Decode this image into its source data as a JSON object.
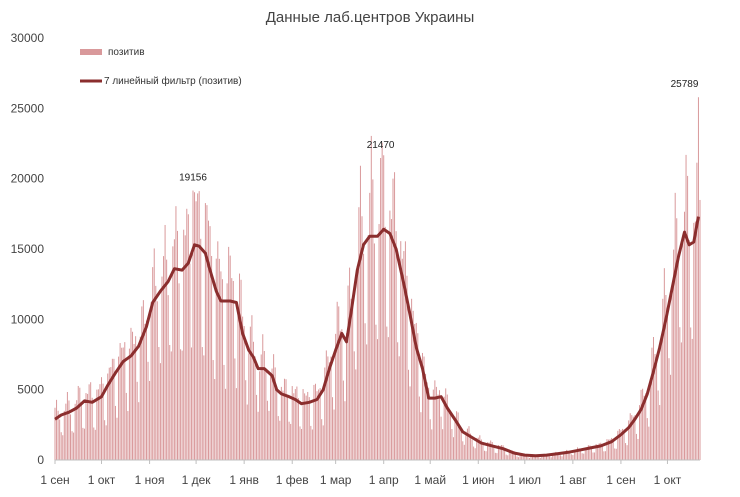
{
  "chart_data": {
    "type": "bar",
    "title": "Данные лаб.центров Украины",
    "ylim": [
      0,
      30000
    ],
    "y_ticks": [
      "0",
      "5000",
      "10000",
      "15000",
      "20000",
      "25000",
      "30000"
    ],
    "x_start": "2020-09-01",
    "x_end": "2021-10-22",
    "x_tick_dates": [
      "2020-09-01",
      "2020-10-01",
      "2020-11-01",
      "2020-12-01",
      "2021-01-01",
      "2021-02-01",
      "2021-03-01",
      "2021-04-01",
      "2021-05-01",
      "2021-06-01",
      "2021-07-01",
      "2021-08-01",
      "2021-09-01",
      "2021-10-01"
    ],
    "x_tick_labels": [
      "1 сен",
      "1 окт",
      "1 ноя",
      "1 дек",
      "1 янв",
      "1 фев",
      "1 мар",
      "1 апр",
      "1 май",
      "1 июн",
      "1 июл",
      "1 авг",
      "1 сен",
      "1 окт"
    ],
    "grid": false,
    "legend_position": "top-left",
    "series": [
      {
        "name": "позитив",
        "kind": "bar",
        "color": "#d9999b"
      },
      {
        "name": "7 линейный фильтр (позитив)",
        "kind": "line",
        "color": "#8b2e2e",
        "points": [
          [
            "2020-09-01",
            2900
          ],
          [
            "2020-09-05",
            3200
          ],
          [
            "2020-09-10",
            3400
          ],
          [
            "2020-09-15",
            3700
          ],
          [
            "2020-09-20",
            4200
          ],
          [
            "2020-09-25",
            4100
          ],
          [
            "2020-10-01",
            4500
          ],
          [
            "2020-10-05",
            5300
          ],
          [
            "2020-10-10",
            6200
          ],
          [
            "2020-10-15",
            7000
          ],
          [
            "2020-10-20",
            7400
          ],
          [
            "2020-10-25",
            8100
          ],
          [
            "2020-10-30",
            9500
          ],
          [
            "2020-11-03",
            11200
          ],
          [
            "2020-11-08",
            12000
          ],
          [
            "2020-11-13",
            12700
          ],
          [
            "2020-11-17",
            13600
          ],
          [
            "2020-11-22",
            13500
          ],
          [
            "2020-11-26",
            14000
          ],
          [
            "2020-11-30",
            15300
          ],
          [
            "2020-12-03",
            15200
          ],
          [
            "2020-12-07",
            14700
          ],
          [
            "2020-12-10",
            13500
          ],
          [
            "2020-12-14",
            12000
          ],
          [
            "2020-12-17",
            11300
          ],
          [
            "2020-12-23",
            11300
          ],
          [
            "2020-12-27",
            11200
          ],
          [
            "2020-12-31",
            9000
          ],
          [
            "2021-01-04",
            7800
          ],
          [
            "2021-01-07",
            7300
          ],
          [
            "2021-01-10",
            6500
          ],
          [
            "2021-01-14",
            6500
          ],
          [
            "2021-01-19",
            6000
          ],
          [
            "2021-01-22",
            5000
          ],
          [
            "2021-01-25",
            4700
          ],
          [
            "2021-01-30",
            4500
          ],
          [
            "2021-02-03",
            4300
          ],
          [
            "2021-02-07",
            4000
          ],
          [
            "2021-02-12",
            4100
          ],
          [
            "2021-02-17",
            4300
          ],
          [
            "2021-02-21",
            5000
          ],
          [
            "2021-02-25",
            6500
          ],
          [
            "2021-03-01",
            7800
          ],
          [
            "2021-03-05",
            9000
          ],
          [
            "2021-03-08",
            8400
          ],
          [
            "2021-03-11",
            10500
          ],
          [
            "2021-03-15",
            13500
          ],
          [
            "2021-03-19",
            15300
          ],
          [
            "2021-03-23",
            15900
          ],
          [
            "2021-03-28",
            15900
          ],
          [
            "2021-04-01",
            16400
          ],
          [
            "2021-04-05",
            16100
          ],
          [
            "2021-04-09",
            15000
          ],
          [
            "2021-04-14",
            12500
          ],
          [
            "2021-04-18",
            10300
          ],
          [
            "2021-04-22",
            8000
          ],
          [
            "2021-04-26",
            6500
          ],
          [
            "2021-04-30",
            4400
          ],
          [
            "2021-05-04",
            4400
          ],
          [
            "2021-05-08",
            4500
          ],
          [
            "2021-05-12",
            3700
          ],
          [
            "2021-05-18",
            2700
          ],
          [
            "2021-05-22",
            2000
          ],
          [
            "2021-05-28",
            1600
          ],
          [
            "2021-06-03",
            1200
          ],
          [
            "2021-06-10",
            1000
          ],
          [
            "2021-06-17",
            800
          ],
          [
            "2021-06-24",
            500
          ],
          [
            "2021-07-01",
            350
          ],
          [
            "2021-07-08",
            300
          ],
          [
            "2021-07-15",
            350
          ],
          [
            "2021-07-22",
            450
          ],
          [
            "2021-07-29",
            550
          ],
          [
            "2021-08-05",
            700
          ],
          [
            "2021-08-12",
            850
          ],
          [
            "2021-08-19",
            1000
          ],
          [
            "2021-08-26",
            1300
          ],
          [
            "2021-09-01",
            1800
          ],
          [
            "2021-09-06",
            2300
          ],
          [
            "2021-09-10",
            2900
          ],
          [
            "2021-09-14",
            3600
          ],
          [
            "2021-09-18",
            4700
          ],
          [
            "2021-09-22",
            6300
          ],
          [
            "2021-09-26",
            8000
          ],
          [
            "2021-09-30",
            10000
          ],
          [
            "2021-10-04",
            12200
          ],
          [
            "2021-10-08",
            14400
          ],
          [
            "2021-10-12",
            16200
          ],
          [
            "2021-10-15",
            15300
          ],
          [
            "2021-10-18",
            15500
          ],
          [
            "2021-10-21",
            17300
          ]
        ]
      }
    ],
    "annotations": [
      {
        "text": "19156",
        "x": "2020-11-29",
        "y": 19156
      },
      {
        "text": "21470",
        "x": "2021-03-30",
        "y": 21470
      },
      {
        "text": "25789",
        "x": "2021-10-21",
        "y": 25789
      }
    ]
  }
}
